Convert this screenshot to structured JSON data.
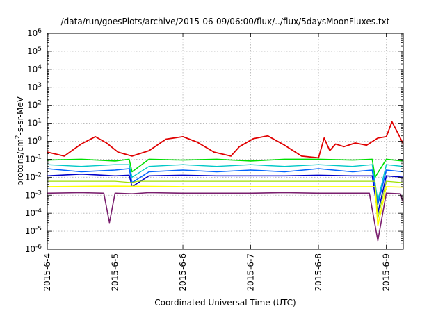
{
  "chart_data": {
    "type": "line",
    "title": "/data/run/goesPlots/archive/2015-06-09/06:00/flux/../flux/5daysMoonFluxes.txt",
    "xlabel": "Coordinated Universal Time (UTC)",
    "ylabel": {
      "prefix": "protons/cm",
      "sup": "2",
      "suffix": "-s-sr-MeV"
    },
    "x_scale": "time",
    "y_scale": "log",
    "xlim": [
      "2015-06-04 00:00",
      "2015-06-09 06:00"
    ],
    "ylim": [
      1e-06,
      1000000.0
    ],
    "grid": true,
    "legend": "none",
    "x_ticks": [
      "2015-6-4",
      "2015-6-5",
      "2015-6-6",
      "2015-6-7",
      "2015-6-8",
      "2015-6-9"
    ],
    "y_ticks": [
      {
        "base": "10",
        "exp": "-6"
      },
      {
        "base": "10",
        "exp": "-5"
      },
      {
        "base": "10",
        "exp": "-4"
      },
      {
        "base": "10",
        "exp": "-3"
      },
      {
        "base": "10",
        "exp": "-2"
      },
      {
        "base": "10",
        "exp": "-1"
      },
      {
        "base": "10",
        "exp": "0"
      },
      {
        "base": "10",
        "exp": "1"
      },
      {
        "base": "10",
        "exp": "2"
      },
      {
        "base": "10",
        "exp": "3"
      },
      {
        "base": "10",
        "exp": "4"
      },
      {
        "base": "10",
        "exp": "5"
      },
      {
        "base": "10",
        "exp": "6"
      }
    ],
    "series": [
      {
        "color": "#e00000",
        "width": 1.8,
        "x": [
          "2015-06-04 00:00",
          "2015-06-04 06:00",
          "2015-06-04 12:00",
          "2015-06-04 17:00",
          "2015-06-04 21:00",
          "2015-06-05 01:00",
          "2015-06-05 06:00",
          "2015-06-05 12:00",
          "2015-06-05 18:00",
          "2015-06-06 00:00",
          "2015-06-06 05:00",
          "2015-06-06 11:00",
          "2015-06-06 17:00",
          "2015-06-06 20:00",
          "2015-06-07 01:00",
          "2015-06-07 06:00",
          "2015-06-07 12:00",
          "2015-06-07 18:00",
          "2015-06-08 00:00",
          "2015-06-08 02:00",
          "2015-06-08 04:00",
          "2015-06-08 06:00",
          "2015-06-08 09:00",
          "2015-06-08 13:00",
          "2015-06-08 17:00",
          "2015-06-08 21:00",
          "2015-06-09 00:00",
          "2015-06-09 02:00",
          "2015-06-09 04:00",
          "2015-06-09 06:00"
        ],
        "y": [
          0.25,
          0.15,
          0.7,
          1.8,
          0.8,
          0.25,
          0.15,
          0.3,
          1.3,
          1.8,
          0.9,
          0.25,
          0.15,
          0.5,
          1.4,
          2.0,
          0.6,
          0.15,
          0.12,
          1.5,
          0.3,
          0.7,
          0.5,
          0.8,
          0.6,
          1.5,
          1.8,
          12,
          3,
          0.7
        ]
      },
      {
        "color": "#00e000",
        "width": 1.6,
        "x": [
          "2015-06-04 00:00",
          "2015-06-04 12:00",
          "2015-06-05 00:00",
          "2015-06-05 05:00",
          "2015-06-05 06:00",
          "2015-06-05 12:00",
          "2015-06-06 00:00",
          "2015-06-06 12:00",
          "2015-06-07 00:00",
          "2015-06-07 12:00",
          "2015-06-08 00:00",
          "2015-06-08 12:00",
          "2015-06-08 19:00",
          "2015-06-08 20:00",
          "2015-06-09 00:00",
          "2015-06-09 06:00"
        ],
        "y": [
          0.09,
          0.1,
          0.08,
          0.1,
          0.02,
          0.1,
          0.09,
          0.1,
          0.08,
          0.1,
          0.1,
          0.09,
          0.1,
          0.01,
          0.1,
          0.08
        ]
      },
      {
        "color": "#00c8c8",
        "width": 1.4,
        "x": [
          "2015-06-04 00:00",
          "2015-06-04 12:00",
          "2015-06-05 00:00",
          "2015-06-05 05:00",
          "2015-06-05 06:00",
          "2015-06-05 12:00",
          "2015-06-06 00:00",
          "2015-06-06 12:00",
          "2015-06-07 00:00",
          "2015-06-07 12:00",
          "2015-06-08 00:00",
          "2015-06-08 12:00",
          "2015-06-08 19:00",
          "2015-06-08 21:00",
          "2015-06-09 00:00",
          "2015-06-09 06:00"
        ],
        "y": [
          0.05,
          0.04,
          0.05,
          0.05,
          0.01,
          0.04,
          0.05,
          0.04,
          0.05,
          0.04,
          0.05,
          0.04,
          0.05,
          0.0005,
          0.05,
          0.04
        ]
      },
      {
        "color": "#0064ff",
        "width": 1.6,
        "x": [
          "2015-06-04 00:00",
          "2015-06-04 12:00",
          "2015-06-05 00:00",
          "2015-06-05 05:00",
          "2015-06-05 06:00",
          "2015-06-05 12:00",
          "2015-06-06 00:00",
          "2015-06-06 12:00",
          "2015-06-07 00:00",
          "2015-06-07 12:00",
          "2015-06-08 00:00",
          "2015-06-08 12:00",
          "2015-06-08 19:00",
          "2015-06-08 21:00",
          "2015-06-09 00:00",
          "2015-06-09 06:00"
        ],
        "y": [
          0.03,
          0.02,
          0.025,
          0.03,
          0.005,
          0.02,
          0.025,
          0.02,
          0.025,
          0.02,
          0.03,
          0.02,
          0.025,
          0.0003,
          0.025,
          0.02
        ]
      },
      {
        "color": "#0000c8",
        "width": 1.6,
        "x": [
          "2015-06-04 00:00",
          "2015-06-04 12:00",
          "2015-06-05 00:00",
          "2015-06-05 05:00",
          "2015-06-05 06:00",
          "2015-06-05 12:00",
          "2015-06-06 00:00",
          "2015-06-06 12:00",
          "2015-06-07 00:00",
          "2015-06-07 12:00",
          "2015-06-08 00:00",
          "2015-06-08 12:00",
          "2015-06-08 19:00",
          "2015-06-08 21:00",
          "2015-06-09 00:00",
          "2015-06-09 06:00"
        ],
        "y": [
          0.012,
          0.015,
          0.012,
          0.013,
          0.003,
          0.012,
          0.013,
          0.012,
          0.012,
          0.012,
          0.013,
          0.012,
          0.012,
          0.0001,
          0.012,
          0.01
        ]
      },
      {
        "color": "#a0e000",
        "width": 1.2,
        "x": [
          "2015-06-04 00:00",
          "2015-06-05 00:00",
          "2015-06-05 06:00",
          "2015-06-05 08:00",
          "2015-06-06 00:00",
          "2015-06-07 00:00",
          "2015-06-08 00:00",
          "2015-06-08 20:00",
          "2015-06-08 21:00",
          "2015-06-09 00:00",
          "2015-06-09 06:00"
        ],
        "y": [
          0.006,
          0.006,
          0.005,
          0.006,
          0.006,
          0.006,
          0.006,
          0.006,
          5e-05,
          0.006,
          0.005
        ]
      },
      {
        "color": "#ffff00",
        "width": 1.6,
        "x": [
          "2015-06-04 00:00",
          "2015-06-05 00:00",
          "2015-06-06 00:00",
          "2015-06-07 00:00",
          "2015-06-08 00:00",
          "2015-06-08 20:00",
          "2015-06-08 21:00",
          "2015-06-09 00:00",
          "2015-06-09 06:00"
        ],
        "y": [
          0.003,
          0.0032,
          0.003,
          0.003,
          0.003,
          0.003,
          2e-05,
          0.003,
          0.0028
        ]
      },
      {
        "color": "#7a1f6e",
        "width": 1.6,
        "x": [
          "2015-06-04 00:00",
          "2015-06-04 12:00",
          "2015-06-04 20:00",
          "2015-06-04 22:00",
          "2015-06-05 00:00",
          "2015-06-05 06:00",
          "2015-06-05 12:00",
          "2015-06-06 00:00",
          "2015-06-06 12:00",
          "2015-06-07 00:00",
          "2015-06-07 12:00",
          "2015-06-08 00:00",
          "2015-06-08 12:00",
          "2015-06-08 18:00",
          "2015-06-08 21:00",
          "2015-06-09 00:00",
          "2015-06-09 05:00",
          "2015-06-09 06:00"
        ],
        "y": [
          0.0013,
          0.0014,
          0.0013,
          3e-05,
          0.0013,
          0.0012,
          0.0014,
          0.0013,
          0.0013,
          0.0013,
          0.0014,
          0.0013,
          0.0013,
          0.0013,
          3e-06,
          0.0013,
          0.0012,
          0.0004
        ]
      }
    ]
  }
}
